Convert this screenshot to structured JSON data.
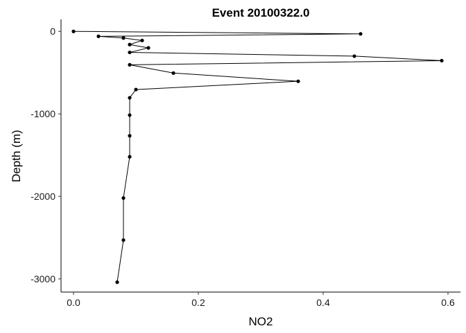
{
  "chart_data": {
    "type": "line",
    "title": "Event 20100322.0",
    "xlabel": "NO2",
    "ylabel": "Depth (m)",
    "xlim": [
      -0.02,
      0.62
    ],
    "ylim": [
      -3160,
      145
    ],
    "x_ticks": [
      0.0,
      0.2,
      0.4,
      0.6
    ],
    "x_tick_labels": [
      "0.0",
      "0.2",
      "0.4",
      "0.6"
    ],
    "y_ticks": [
      0,
      -1000,
      -2000,
      -3000
    ],
    "y_tick_labels": [
      "0",
      "-1000",
      "-2000",
      "-3000"
    ],
    "grid": false,
    "legend": "none",
    "series": [
      {
        "color": "#000000",
        "points": [
          {
            "x": 0.0,
            "y": 0
          },
          {
            "x": 0.46,
            "y": -30
          },
          {
            "x": 0.04,
            "y": -60
          },
          {
            "x": 0.08,
            "y": -80
          },
          {
            "x": 0.11,
            "y": -110
          },
          {
            "x": 0.09,
            "y": -160
          },
          {
            "x": 0.12,
            "y": -200
          },
          {
            "x": 0.09,
            "y": -255
          },
          {
            "x": 0.45,
            "y": -300
          },
          {
            "x": 0.59,
            "y": -355
          },
          {
            "x": 0.09,
            "y": -405
          },
          {
            "x": 0.16,
            "y": -505
          },
          {
            "x": 0.36,
            "y": -605
          },
          {
            "x": 0.1,
            "y": -705
          },
          {
            "x": 0.09,
            "y": -805
          },
          {
            "x": 0.09,
            "y": -1015
          },
          {
            "x": 0.09,
            "y": -1265
          },
          {
            "x": 0.09,
            "y": -1520
          },
          {
            "x": 0.08,
            "y": -2020
          },
          {
            "x": 0.08,
            "y": -2530
          },
          {
            "x": 0.07,
            "y": -3040
          }
        ]
      }
    ]
  }
}
